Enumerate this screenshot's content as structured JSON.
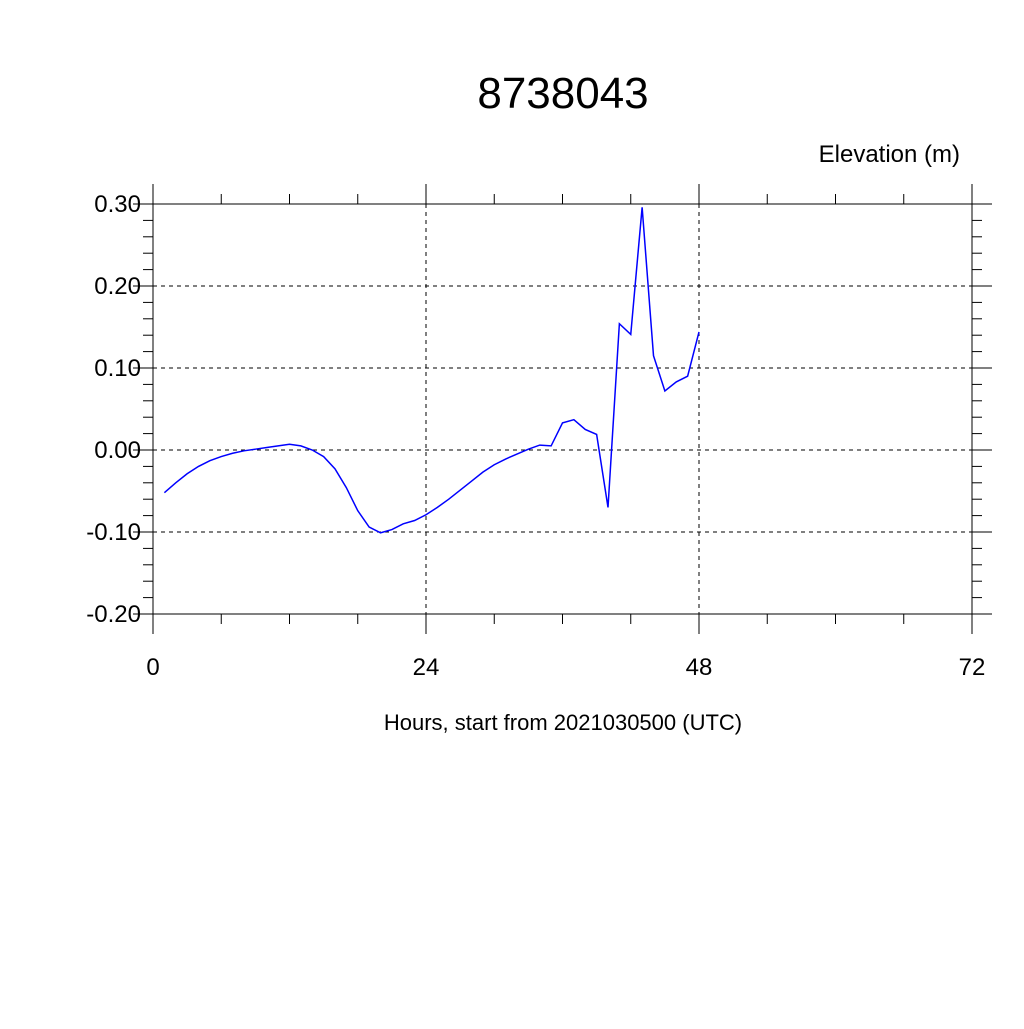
{
  "chart_data": {
    "type": "line",
    "title": "8738043",
    "ylabel": "Elevation (m)",
    "xlabel": "Hours, start from 2021030500 (UTC)",
    "x": [
      1,
      2,
      3,
      4,
      5,
      6,
      7,
      8,
      9,
      10,
      11,
      12,
      13,
      14,
      15,
      16,
      17,
      18,
      19,
      20,
      21,
      22,
      23,
      24,
      25,
      26,
      27,
      28,
      29,
      30,
      31,
      32,
      33,
      34,
      35,
      36,
      37,
      38,
      39,
      40,
      41,
      42,
      43,
      44,
      45,
      46,
      47,
      48
    ],
    "series": [
      {
        "color": "#0000ff",
        "values": [
          -0.052,
          -0.04,
          -0.029,
          -0.02,
          -0.013,
          -0.008,
          -0.004,
          -0.001,
          0.001,
          0.003,
          0.005,
          0.007,
          0.005,
          0.0,
          -0.008,
          -0.023,
          -0.046,
          -0.074,
          -0.094,
          -0.101,
          -0.097,
          -0.09,
          -0.086,
          -0.079,
          -0.07,
          -0.06,
          -0.049,
          -0.038,
          -0.027,
          -0.018,
          -0.011,
          -0.005,
          0.001,
          0.006,
          0.005,
          0.033,
          0.037,
          0.025,
          0.019,
          -0.07,
          0.154,
          0.141,
          0.296,
          0.115,
          0.072,
          0.083,
          0.09,
          0.144
        ]
      }
    ],
    "xlim": [
      0,
      72
    ],
    "xticks": [
      0,
      24,
      48,
      72
    ],
    "xminorticks": [
      6,
      12,
      18,
      30,
      36,
      42,
      54,
      60,
      66
    ],
    "ylim": [
      -0.2,
      0.3
    ],
    "yticks": [
      {
        "value": -0.2,
        "label": "-0.20"
      },
      {
        "value": -0.1,
        "label": "-0.10"
      },
      {
        "value": 0,
        "label": "0.00"
      },
      {
        "value": 0.1,
        "label": "0.10"
      },
      {
        "value": 0.2,
        "label": "0.20"
      },
      {
        "value": 0.3,
        "label": "0.30"
      }
    ],
    "yminorticks": [
      -0.18,
      -0.16,
      -0.14,
      -0.12,
      -0.08,
      -0.06,
      -0.04,
      -0.02,
      0.02,
      0.04,
      0.06,
      0.08,
      0.12,
      0.14,
      0.16,
      0.18,
      0.22,
      0.24,
      0.26,
      0.28
    ],
    "grid": true
  }
}
